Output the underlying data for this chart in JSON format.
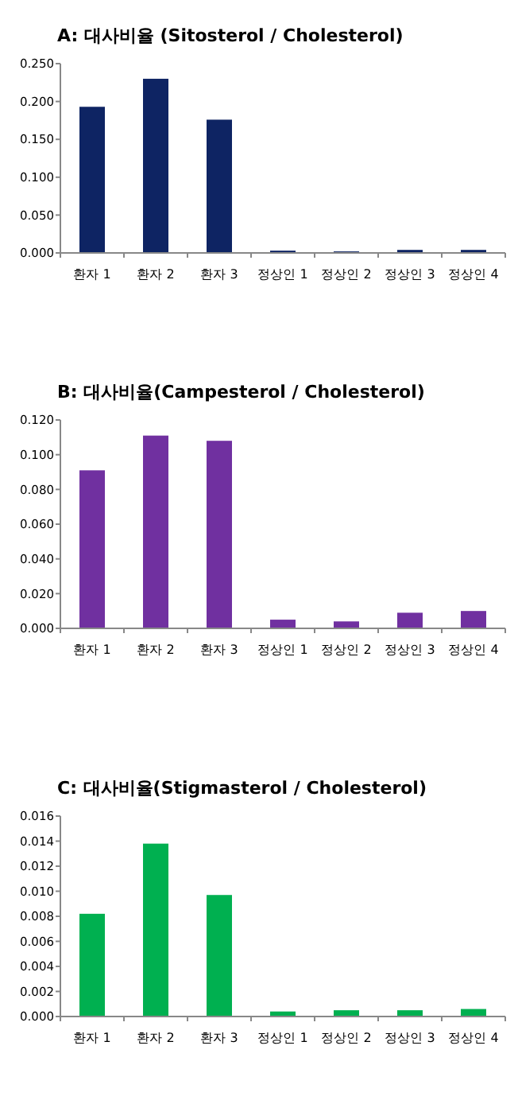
{
  "chart_data": [
    {
      "type": "bar",
      "title": "A: 대사비율 (Sitosterol / Cholesterol)",
      "categories": [
        "환자 1",
        "환자 2",
        "환자 3",
        "정상인 1",
        "정상인 2",
        "정상인 3",
        "정상인 4"
      ],
      "values": [
        0.193,
        0.23,
        0.176,
        0.003,
        0.002,
        0.004,
        0.004
      ],
      "color": "#0e2463",
      "ylim": [
        0,
        0.25
      ],
      "yticks": [
        {
          "value": 0,
          "label": "0.000"
        },
        {
          "value": 0.05,
          "label": "0.050"
        },
        {
          "value": 0.1,
          "label": "0.100"
        },
        {
          "value": 0.15,
          "label": "0.150"
        },
        {
          "value": 0.2,
          "label": "0.200"
        },
        {
          "value": 0.25,
          "label": "0.250"
        }
      ],
      "grid": false
    },
    {
      "type": "bar",
      "title": "B: 대사비율(Campesterol / Cholesterol)",
      "categories": [
        "환자 1",
        "환자 2",
        "환자 3",
        "정상인 1",
        "정상인 2",
        "정상인 3",
        "정상인 4"
      ],
      "values": [
        0.091,
        0.111,
        0.108,
        0.005,
        0.004,
        0.009,
        0.01
      ],
      "color": "#7030a0",
      "ylim": [
        0,
        0.12
      ],
      "yticks": [
        {
          "value": 0,
          "label": "0.000"
        },
        {
          "value": 0.02,
          "label": "0.020"
        },
        {
          "value": 0.04,
          "label": "0.040"
        },
        {
          "value": 0.06,
          "label": "0.060"
        },
        {
          "value": 0.08,
          "label": "0.080"
        },
        {
          "value": 0.1,
          "label": "0.100"
        },
        {
          "value": 0.12,
          "label": "0.120"
        }
      ],
      "grid": false
    },
    {
      "type": "bar",
      "title": "C: 대사비율(Stigmasterol / Cholesterol)",
      "categories": [
        "환자 1",
        "환자 2",
        "환자 3",
        "정상인 1",
        "정상인 2",
        "정상인 3",
        "정상인 4"
      ],
      "values": [
        0.0082,
        0.0138,
        0.0097,
        0.0004,
        0.0005,
        0.0005,
        0.0006
      ],
      "color": "#00b050",
      "ylim": [
        0,
        0.016
      ],
      "yticks": [
        {
          "value": 0,
          "label": "0.000"
        },
        {
          "value": 0.002,
          "label": "0.002"
        },
        {
          "value": 0.004,
          "label": "0.004"
        },
        {
          "value": 0.006,
          "label": "0.006"
        },
        {
          "value": 0.008,
          "label": "0.008"
        },
        {
          "value": 0.01,
          "label": "0.010"
        },
        {
          "value": 0.012,
          "label": "0.012"
        },
        {
          "value": 0.014,
          "label": "0.014"
        },
        {
          "value": 0.016,
          "label": "0.016"
        }
      ],
      "grid": false
    }
  ]
}
